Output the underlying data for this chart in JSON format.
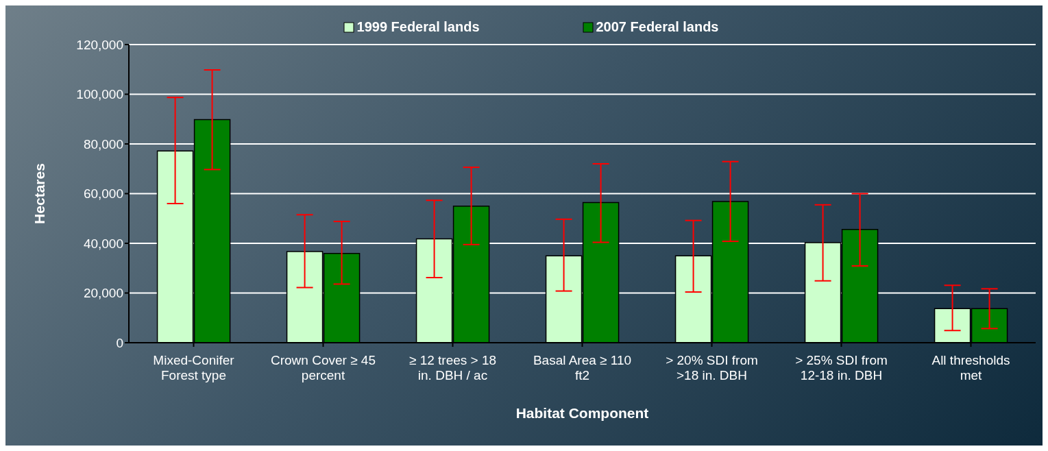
{
  "chart_data": {
    "type": "bar",
    "categories": [
      "Mixed-Conifer Forest type",
      "Crown  Cover ≥ 45 percent",
      "≥ 12 trees > 18 in. DBH / ac",
      "Basal Area ≥ 110 ft2",
      "> 20% SDI from >18 in. DBH",
      "> 25% SDI from 12-18 in. DBH",
      "All thresholds met"
    ],
    "series": [
      {
        "name": "1999 Federal lands",
        "color": "#ccffcc",
        "values": [
          77200,
          36700,
          41800,
          35000,
          35000,
          40300,
          13700
        ],
        "errors": [
          [
            56000,
            98700
          ],
          [
            22200,
            51500
          ],
          [
            26200,
            57300
          ],
          [
            20800,
            49700
          ],
          [
            20400,
            49200
          ],
          [
            24900,
            55500
          ],
          [
            4900,
            23100
          ]
        ]
      },
      {
        "name": "2007 Federal lands",
        "color": "#008000",
        "values": [
          89800,
          35900,
          55000,
          56400,
          56800,
          45600,
          13700
        ],
        "errors": [
          [
            69700,
            109800
          ],
          [
            23600,
            48800
          ],
          [
            39500,
            70600
          ],
          [
            40400,
            72000
          ],
          [
            40800,
            72900
          ],
          [
            30900,
            60000
          ],
          [
            5700,
            21700
          ]
        ]
      }
    ],
    "xlabel": "Habitat Component",
    "ylabel": "Hectares",
    "ylim": [
      0,
      120000
    ],
    "yticks": [
      {
        "value": 0,
        "label": "0"
      },
      {
        "value": 20000,
        "label": "20,000"
      },
      {
        "value": 40000,
        "label": "40,000"
      },
      {
        "value": 60000,
        "label": "60,000"
      },
      {
        "value": 80000,
        "label": "80,000"
      },
      {
        "value": 100000,
        "label": "100,000"
      },
      {
        "value": 120000,
        "label": "120,000"
      }
    ],
    "grid": "y",
    "legend": "top"
  }
}
